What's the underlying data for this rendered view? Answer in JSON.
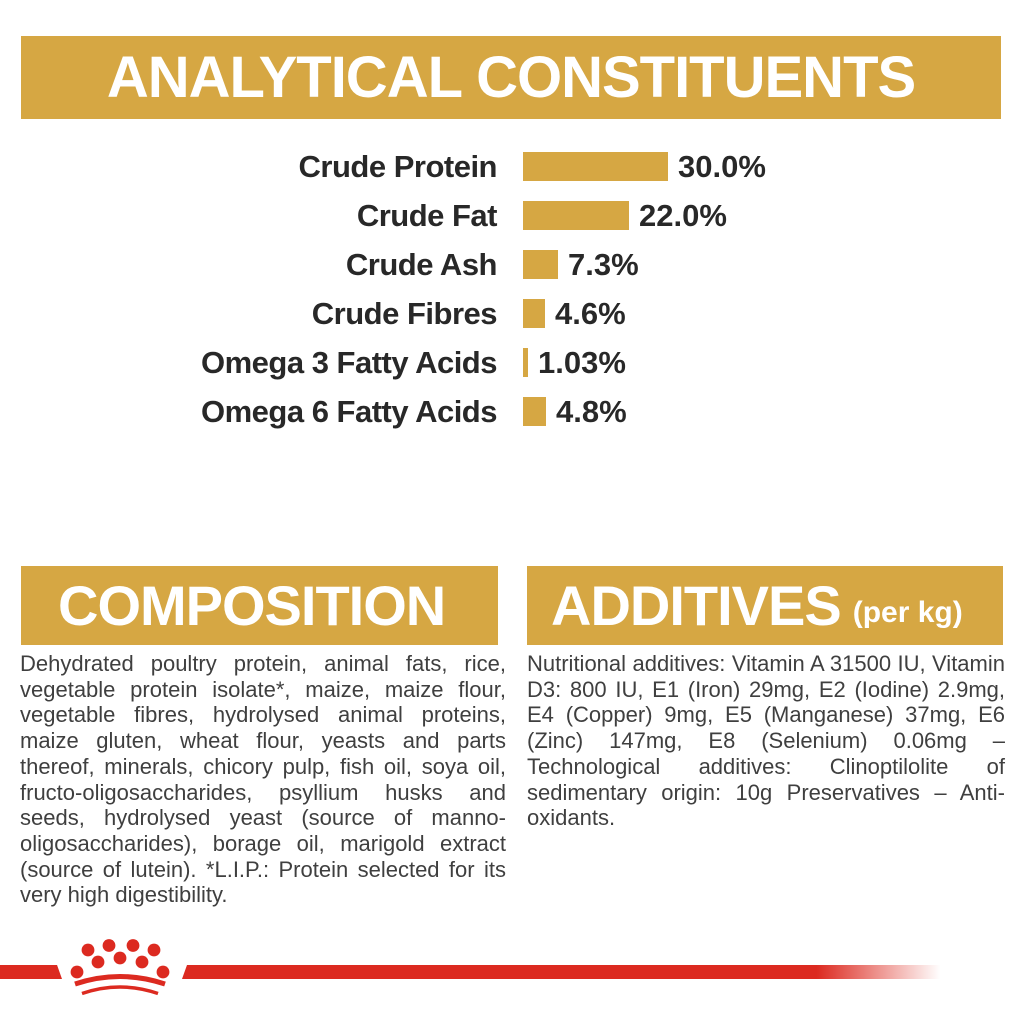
{
  "colors": {
    "gold": "#D6A743",
    "red": "#DC2A20",
    "heading_text": "#FFFFFF",
    "chart_text": "#282828",
    "body_text": "#3F3F3F",
    "background": "#FFFFFF"
  },
  "analytical": {
    "title": "ANALYTICAL CONSTITUENTS"
  },
  "chart_data": {
    "type": "bar",
    "orientation": "horizontal",
    "title": "ANALYTICAL CONSTITUENTS",
    "unit": "%",
    "xlim": [
      0,
      30
    ],
    "grid": false,
    "bar_color": "#D6A743",
    "categories": [
      "Crude Protein",
      "Crude Fat",
      "Crude Ash",
      "Crude Fibres",
      "Omega 3 Fatty Acids",
      "Omega 6 Fatty Acids"
    ],
    "values": [
      30.0,
      22.0,
      7.3,
      4.6,
      1.03,
      4.8
    ],
    "value_labels": [
      "30.0%",
      "22.0%",
      "7.3%",
      "4.6%",
      "1.03%",
      "4.8%"
    ]
  },
  "composition": {
    "title": "COMPOSITION",
    "body": "Dehydrated poultry protein, animal fats, rice, vegetable protein isolate*, maize, maize flour, vegetable fibres, hydrolysed animal proteins, maize gluten, wheat flour, yeasts and parts thereof, minerals, chicory pulp, fish oil, soya oil, fructo-oligosaccharides, psyllium husks and seeds, hydrolysed yeast (source of manno-oligosaccharides), borage oil, marigold extract (source of lutein). *L.I.P.: Protein selected for its very high digestibility."
  },
  "additives": {
    "title": "ADDITIVES",
    "suffix": "(per kg)",
    "body": "Nutritional additives: Vitamin A 31500 IU, Vitamin D3: 800 IU, E1 (Iron) 29mg, E2 (Iodine) 2.9mg, E4 (Copper) 9mg, E5 (Manganese) 37mg, E6 (Zinc) 147mg, E8 (Selenium) 0.06mg – Technological additives: Clinoptilolite of sedimentary origin: 10g Preservatives – Anti-oxidants."
  },
  "footer": {
    "logo": "royal-canin-crown"
  }
}
